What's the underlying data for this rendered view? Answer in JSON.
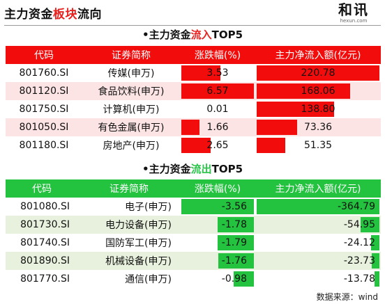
{
  "header": {
    "title_pre": "主力资金",
    "title_red": "板块",
    "title_post": "流向",
    "logo_text": "和讯",
    "logo_sub": "hexun.com"
  },
  "inflow": {
    "title_pre": "•主力资金",
    "title_highlight": "流入",
    "title_post": "TOP5",
    "columns": [
      "代码",
      "证券简称",
      "涨跌幅(%)",
      "主力净流入额(亿元)"
    ],
    "rows": [
      {
        "code": "801760.SI",
        "name": "传媒(申万)",
        "change": 3.53,
        "flow": 220.78
      },
      {
        "code": "801120.SI",
        "name": "食品饮料(申万)",
        "change": 6.57,
        "flow": 168.06
      },
      {
        "code": "801750.SI",
        "name": "计算机(申万)",
        "change": 0.01,
        "flow": 138.8
      },
      {
        "code": "801050.SI",
        "name": "有色金属(申万)",
        "change": 1.66,
        "flow": 73.36
      },
      {
        "code": "801180.SI",
        "name": "房地产(申万)",
        "change": 2.65,
        "flow": 51.35
      }
    ]
  },
  "outflow": {
    "title_pre": "•主力资金",
    "title_highlight": "流出",
    "title_post": "TOP5",
    "columns": [
      "代码",
      "证券简称",
      "涨跌幅(%)",
      "主力净流入额(亿元)"
    ],
    "rows": [
      {
        "code": "801080.SI",
        "name": "电子(申万)",
        "change": -3.56,
        "flow": -364.79
      },
      {
        "code": "801730.SI",
        "name": "电力设备(申万)",
        "change": -1.78,
        "flow": -54.95
      },
      {
        "code": "801740.SI",
        "name": "国防军工(申万)",
        "change": -1.79,
        "flow": -24.12
      },
      {
        "code": "801890.SI",
        "name": "机械设备(申万)",
        "change": -1.76,
        "flow": -23.73
      },
      {
        "code": "801770.SI",
        "name": "通信(申万)",
        "change": -0.98,
        "flow": -13.78
      }
    ]
  },
  "footer": {
    "source": "数据来源：wind"
  },
  "colors": {
    "red": "#f20c0c",
    "green": "#23c23f",
    "red_alt_row": "#fce4e4",
    "green_alt_row": "#e8f1dd"
  }
}
